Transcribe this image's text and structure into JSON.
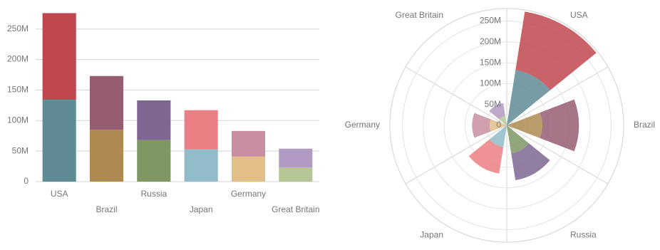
{
  "chart_data": [
    {
      "type": "bar",
      "stacked": true,
      "categories": [
        "USA",
        "Brazil",
        "Russia",
        "Japan",
        "Germany",
        "Great Britain"
      ],
      "series": [
        {
          "colors": [
            "#5f8b95",
            "#ae8a50",
            "#7e9763",
            "#91bcc9",
            "#e2bf88",
            "#b6c795"
          ],
          "values": [
            134,
            85,
            68,
            53,
            41,
            23
          ]
        },
        {
          "colors": [
            "#c0474f",
            "#965c72",
            "#7e6691",
            "#ec7f83",
            "#c98fa1",
            "#b19bc2"
          ],
          "values": [
            142,
            88,
            65,
            64,
            42,
            31
          ]
        }
      ],
      "ylim": [
        0,
        280
      ],
      "yticks": [
        0,
        {
          "value": 50,
          "label": "50M"
        },
        {
          "value": 100,
          "label": "100M"
        },
        {
          "value": 150,
          "label": "150M"
        },
        {
          "value": 200,
          "label": "200M"
        },
        {
          "value": 250,
          "label": "250M"
        }
      ],
      "grid": true
    },
    {
      "type": "polar-bar",
      "stacked": true,
      "categories": [
        "USA",
        "Brazil",
        "Russia",
        "Japan",
        "Germany",
        "Great Britain"
      ],
      "series": [
        {
          "colors": [
            "#5f8b95",
            "#ae8a50",
            "#7e9763",
            "#91bcc9",
            "#e2bf88",
            "#b6c795"
          ],
          "values": [
            134,
            85,
            68,
            53,
            41,
            23
          ]
        },
        {
          "colors": [
            "#c0474f",
            "#965c72",
            "#7e6691",
            "#ec7f83",
            "#c98fa1",
            "#b19bc2"
          ],
          "values": [
            142,
            88,
            65,
            64,
            42,
            31
          ]
        }
      ],
      "ylim": [
        0,
        280
      ],
      "yticks": [
        0,
        {
          "value": 50,
          "label": "50M"
        },
        {
          "value": 100,
          "label": "100M"
        },
        {
          "value": 150,
          "label": "150M"
        },
        {
          "value": 200,
          "label": "200M"
        },
        {
          "value": 250,
          "label": "250M"
        }
      ],
      "grid": true
    }
  ]
}
